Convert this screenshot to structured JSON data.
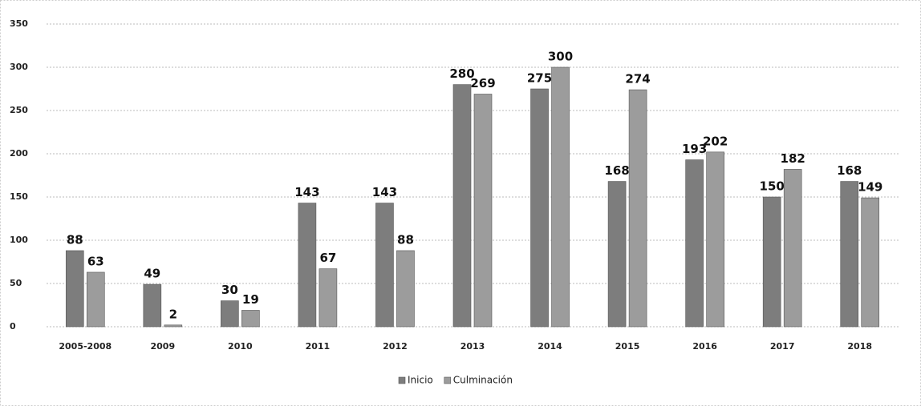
{
  "chart_data": {
    "type": "bar",
    "categories": [
      "2005-2008",
      "2009",
      "2010",
      "2011",
      "2012",
      "2013",
      "2014",
      "2015",
      "2016",
      "2017",
      "2018"
    ],
    "series": [
      {
        "name": "Inicio",
        "color": "#7d7d7d",
        "values": [
          88,
          49,
          30,
          143,
          143,
          280,
          275,
          168,
          193,
          150,
          168
        ]
      },
      {
        "name": "Culminación",
        "color": "#9c9c9c",
        "values": [
          63,
          2,
          19,
          67,
          88,
          269,
          300,
          274,
          202,
          182,
          149
        ]
      }
    ],
    "ylim": [
      0,
      350
    ],
    "yticks": [
      0,
      50,
      100,
      150,
      200,
      250,
      300,
      350
    ],
    "grid": true,
    "legend": "bottom"
  }
}
